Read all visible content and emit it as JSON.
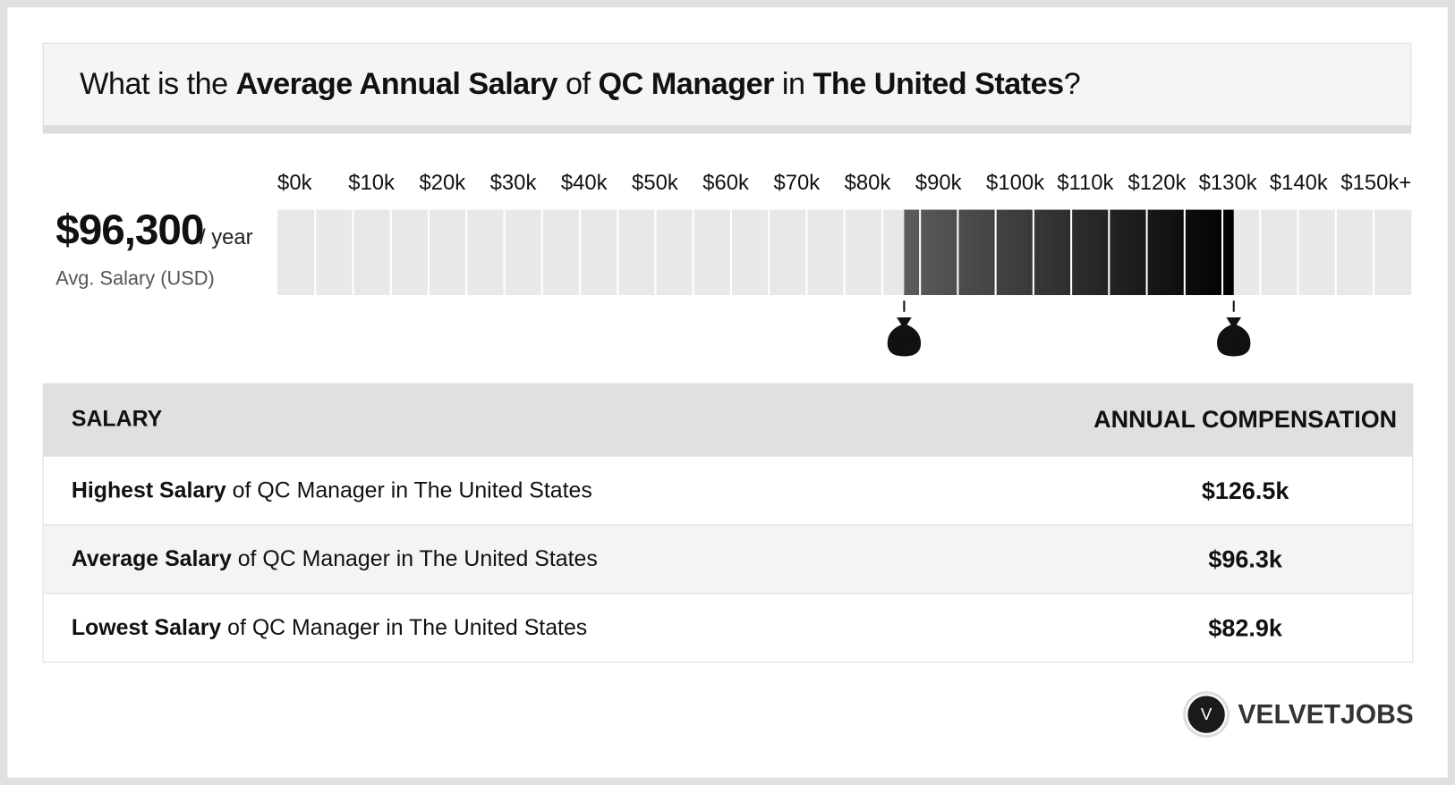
{
  "title": {
    "prefix": "What is the",
    "metric": "Average Annual Salary",
    "of": "of",
    "job": "QC Manager",
    "in": "in",
    "location": "The United States",
    "suffix": "?"
  },
  "summary": {
    "amount": "$96,300",
    "unit": "/ year",
    "caption": "Avg. Salary (USD)"
  },
  "scale": {
    "lim": [
      0,
      150
    ],
    "ticks": [
      {
        "value": 0,
        "label": "$0k"
      },
      {
        "value": 10,
        "label": "$10k"
      },
      {
        "value": 20,
        "label": "$20k"
      },
      {
        "value": 30,
        "label": "$30k"
      },
      {
        "value": 40,
        "label": "$40k"
      },
      {
        "value": 50,
        "label": "$50k"
      },
      {
        "value": 60,
        "label": "$60k"
      },
      {
        "value": 70,
        "label": "$70k"
      },
      {
        "value": 80,
        "label": "$80k"
      },
      {
        "value": 90,
        "label": "$90k"
      },
      {
        "value": 100,
        "label": "$100k"
      },
      {
        "value": 110,
        "label": "$110k"
      },
      {
        "value": 120,
        "label": "$120k"
      },
      {
        "value": 130,
        "label": "$130k"
      },
      {
        "value": 140,
        "label": "$140k"
      },
      {
        "value": 150,
        "label": "$150k+"
      }
    ]
  },
  "range": {
    "low": 82.9,
    "high": 126.5,
    "marker_symbol": "$"
  },
  "table": {
    "headers": [
      "SALARY",
      "ANNUAL COMPENSATION"
    ],
    "rows": [
      {
        "label": "Highest Salary",
        "rest": "of QC Manager in The United States",
        "value": "$126.5k"
      },
      {
        "label": "Average Salary",
        "rest": "of QC Manager in The United States",
        "value": "$96.3k"
      },
      {
        "label": "Lowest Salary",
        "rest": "of QC Manager in The United States",
        "value": "$82.9k"
      }
    ]
  },
  "logo": {
    "mark": "V",
    "text": "VELVETJOBS"
  }
}
